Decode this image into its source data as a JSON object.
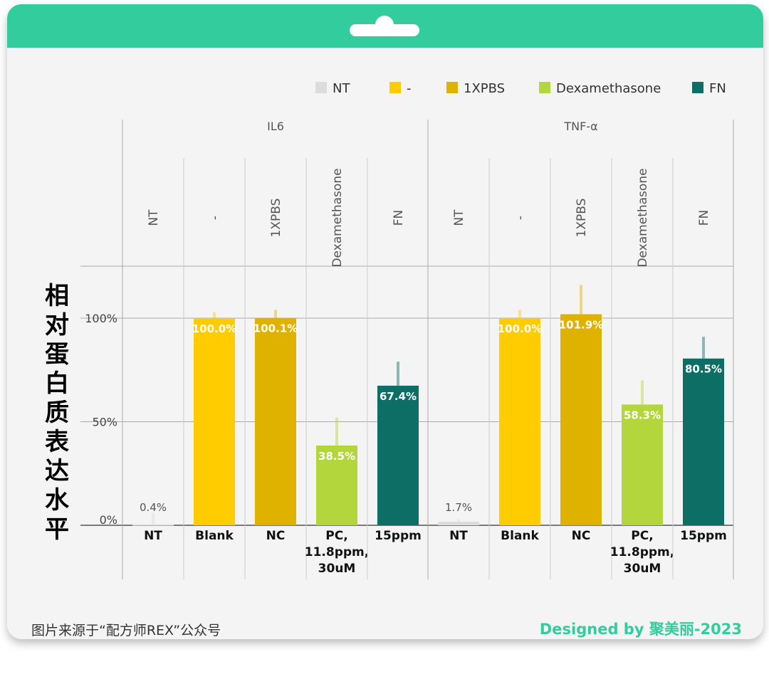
{
  "credit": "Designed by 聚美丽-2023",
  "source_note": "图片来源于“配方师REX”公众号",
  "colors": {
    "header": "#33cc9c",
    "NT": "#dcdcdc",
    "-": "#ffcc00",
    "1XPBS": "#e0b200",
    "Dexamethasone": "#b3d63c",
    "FN": "#0d6e66"
  },
  "chart_data": {
    "type": "bar",
    "ylabel": "相对蛋白质表达水平",
    "ylim": [
      0,
      125
    ],
    "yticks": [
      0,
      50,
      100
    ],
    "ytick_labels": [
      "0%",
      "50%",
      "100%"
    ],
    "grid": true,
    "legend": {
      "placement": "top-right",
      "entries": [
        "NT",
        "-",
        "1XPBS",
        "Dexamethasone",
        "FN"
      ]
    },
    "panels": [
      {
        "title": "IL6",
        "groups": [
          "NT",
          "-",
          "1XPBS",
          "Dexamethasone",
          "FN"
        ],
        "categories": [
          "NT",
          "Blank",
          "NC",
          "PC,\n11.8ppm,\n30uM",
          "15ppm"
        ],
        "values": [
          0.4,
          100.0,
          100.1,
          38.5,
          67.4
        ],
        "labels": [
          "0.4%",
          "100.0%",
          "100.1%",
          "38.5%",
          "67.4%"
        ],
        "error_upper": [
          6,
          103,
          104,
          52,
          79
        ]
      },
      {
        "title": "TNF-α",
        "groups": [
          "NT",
          "-",
          "1XPBS",
          "Dexamethasone",
          "FN"
        ],
        "categories": [
          "NT",
          "Blank",
          "NC",
          "PC,\n11.8ppm,\n30uM",
          "15ppm"
        ],
        "values": [
          1.7,
          100.0,
          101.9,
          58.3,
          80.5
        ],
        "labels": [
          "1.7%",
          "100.0%",
          "101.9%",
          "58.3%",
          "80.5%"
        ],
        "error_upper": [
          3,
          104,
          116,
          70,
          91
        ]
      }
    ]
  }
}
